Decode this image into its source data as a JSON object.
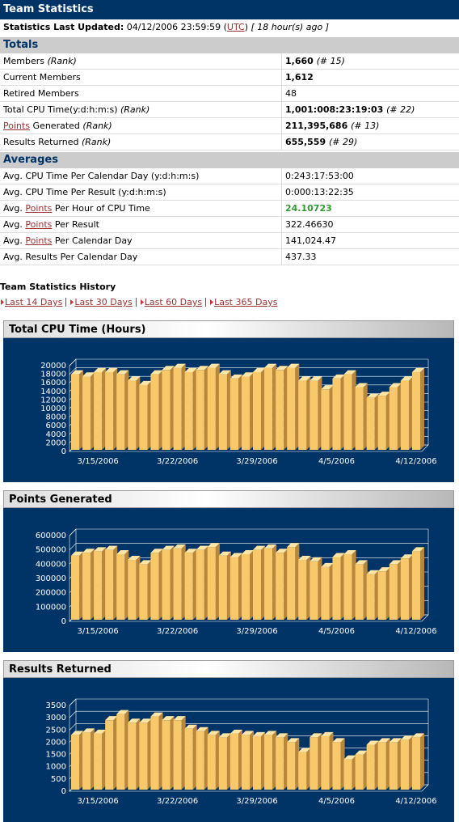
{
  "header": {
    "title": "Team Statistics"
  },
  "updated": {
    "label": "Statistics Last Updated:",
    "date": "04/12/2006 23:59:59",
    "tz": [
      "(",
      "UTC",
      ")"
    ],
    "ago": "[ 18 hour(s) ago ]"
  },
  "totals": {
    "title": "Totals",
    "rows": [
      {
        "label": "Members",
        "note": "(Rank)",
        "value": "1,660",
        "rank": "(# 15)"
      },
      {
        "label": "Current Members",
        "value": "1,612"
      },
      {
        "label": "Retired Members",
        "value": "48",
        "plain": true
      },
      {
        "label": "Total CPU Time(y:d:h:m:s)",
        "note": "(Rank)",
        "value": "1,001:008:23:19:03",
        "rank": "(# 22)"
      },
      {
        "link": "Points",
        "label": "Generated",
        "note": "(Rank)",
        "value": "211,395,686",
        "rank": "(# 13)"
      },
      {
        "label": "Results Returned",
        "note": "(Rank)",
        "value": "655,559",
        "rank": "(# 29)"
      }
    ]
  },
  "averages": {
    "title": "Averages",
    "rows": [
      {
        "label": "Avg. CPU Time Per Calendar Day (y:d:h:m:s)",
        "value": "0:243:17:53:00",
        "plain": true
      },
      {
        "label": "Avg. CPU Time Per Result (y:d:h:m:s)",
        "value": "0:000:13:22:35",
        "plain": true
      },
      {
        "prefix": "Avg.",
        "link": "Points",
        "label": "Per Hour of CPU Time",
        "value": "24.10723",
        "value_color": "#339933"
      },
      {
        "prefix": "Avg.",
        "link": "Points",
        "label": "Per Result",
        "value": "322.46630",
        "plain": true
      },
      {
        "prefix": "Avg.",
        "link": "Points",
        "label": "Per Calendar Day",
        "value": "141,024.47",
        "plain": true
      },
      {
        "label": "Avg. Results Per Calendar Day",
        "value": "437.33",
        "plain": true
      }
    ]
  },
  "history": {
    "title": "Team Statistics History",
    "links": [
      "Last 14 Days",
      "Last 30 Days",
      "Last 60 Days",
      "Last 365 Days"
    ]
  },
  "chart_data": [
    {
      "type": "bar",
      "title": "Total CPU Time (Hours)",
      "color": "#f7c96b",
      "categories": [
        null,
        null,
        "3/15/2006",
        null,
        null,
        null,
        null,
        null,
        null,
        "3/22/2006",
        null,
        null,
        null,
        null,
        null,
        null,
        "3/29/2006",
        null,
        null,
        null,
        null,
        null,
        null,
        "4/5/2006",
        null,
        null,
        null,
        null,
        null,
        null,
        "4/12/2006"
      ],
      "values": [
        18000,
        17500,
        18500,
        18500,
        18000,
        16500,
        15500,
        18000,
        19000,
        19500,
        18500,
        19000,
        19500,
        18000,
        17000,
        17500,
        18500,
        19500,
        19000,
        19500,
        16500,
        16500,
        14500,
        17000,
        18000,
        15000,
        12500,
        13000,
        15000,
        16500,
        18500
      ],
      "ylim": [
        0,
        20000
      ],
      "yticks": [
        0,
        2000,
        4000,
        6000,
        8000,
        10000,
        12000,
        14000,
        16000,
        18000,
        20000
      ],
      "grid": true
    },
    {
      "type": "bar",
      "title": "Points Generated",
      "color": "#f7c96b",
      "categories": [
        null,
        null,
        "3/15/2006",
        null,
        null,
        null,
        null,
        null,
        null,
        "3/22/2006",
        null,
        null,
        null,
        null,
        null,
        null,
        "3/29/2006",
        null,
        null,
        null,
        null,
        null,
        null,
        "4/5/2006",
        null,
        null,
        null,
        null,
        null,
        null,
        "4/12/2006"
      ],
      "values": [
        460000,
        480000,
        490000,
        500000,
        470000,
        430000,
        400000,
        480000,
        500000,
        510000,
        480000,
        500000,
        520000,
        460000,
        450000,
        470000,
        500000,
        510000,
        480000,
        520000,
        430000,
        420000,
        380000,
        450000,
        470000,
        400000,
        330000,
        350000,
        400000,
        440000,
        490000
      ],
      "ylim": [
        0,
        600000
      ],
      "yticks": [
        0,
        100000,
        200000,
        300000,
        400000,
        500000,
        600000
      ],
      "grid": true
    },
    {
      "type": "bar",
      "title": "Results Returned",
      "color": "#f7c96b",
      "categories": [
        null,
        null,
        "3/15/2006",
        null,
        null,
        null,
        null,
        null,
        null,
        "3/22/2006",
        null,
        null,
        null,
        null,
        null,
        null,
        "3/29/2006",
        null,
        null,
        null,
        null,
        null,
        null,
        "4/5/2006",
        null,
        null,
        null,
        null,
        null,
        null,
        "4/12/2006"
      ],
      "values": [
        2300,
        2400,
        2350,
        2900,
        3150,
        2800,
        2800,
        3050,
        2900,
        2900,
        2550,
        2450,
        2300,
        2200,
        2350,
        2300,
        2250,
        2300,
        2200,
        2000,
        1600,
        2200,
        2250,
        2000,
        1300,
        1500,
        1900,
        2000,
        2000,
        2100,
        2200
      ],
      "ylim": [
        0,
        3500
      ],
      "yticks": [
        0,
        500,
        1000,
        1500,
        2000,
        2500,
        3000,
        3500
      ],
      "grid": true
    }
  ]
}
